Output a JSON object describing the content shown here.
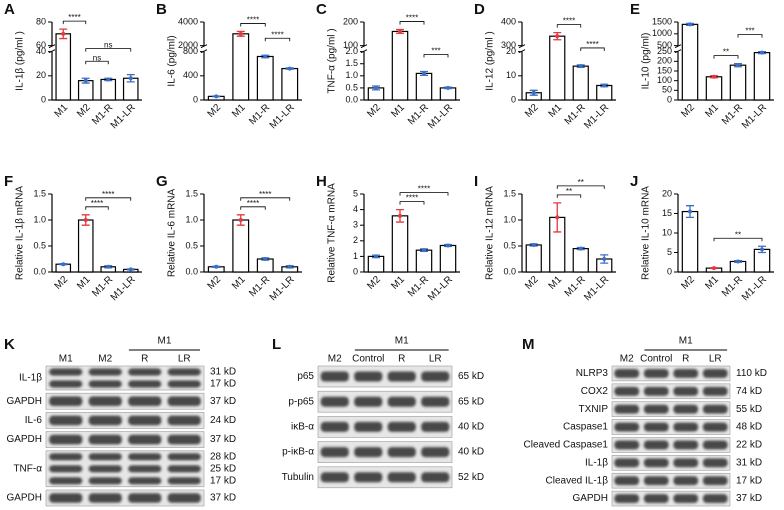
{
  "chart_data": [
    {
      "type": "bar",
      "panel": "A",
      "ylabel": "IL-1β  (pg/ml )",
      "categories": [
        "M1",
        "M2",
        "M1-R",
        "M1-LR"
      ],
      "values": [
        70,
        16,
        17,
        18
      ],
      "errors": [
        4,
        2,
        1,
        3
      ],
      "colors": [
        "#e23a3f",
        "#3b6fc4",
        "#3b6fc4",
        "#3b6fc4"
      ],
      "ylim": [
        0,
        80
      ],
      "ybreak": [
        40,
        60
      ],
      "yticks": [
        0,
        20,
        40,
        60,
        80
      ],
      "significance": [
        {
          "pair": [
            "M1",
            "M2"
          ],
          "label": "****"
        },
        {
          "pair": [
            "M2",
            "M1-R"
          ],
          "label": "ns"
        },
        {
          "pair": [
            "M2",
            "M1-LR"
          ],
          "label": "ns"
        }
      ]
    },
    {
      "type": "bar",
      "panel": "B",
      "ylabel": "IL-6 (pg/ml)",
      "categories": [
        "M2",
        "M1",
        "M1-R",
        "M1-LR"
      ],
      "values": [
        60,
        3000,
        720,
        520
      ],
      "errors": [
        5,
        200,
        20,
        10
      ],
      "colors": [
        "#3b6fc4",
        "#e23a3f",
        "#3b6fc4",
        "#3b6fc4"
      ],
      "ylim": [
        0,
        4000
      ],
      "ybreak": [
        800,
        2000
      ],
      "yticks": [
        0,
        400,
        800,
        2000,
        4000
      ],
      "significance": [
        {
          "pair": [
            "M1",
            "M1-R"
          ],
          "label": "****"
        },
        {
          "pair": [
            "M1-R",
            "M1-LR"
          ],
          "label": "****"
        }
      ]
    },
    {
      "type": "bar",
      "panel": "C",
      "ylabel": "TNF-α (pg/ml )",
      "categories": [
        "M2",
        "M1",
        "M1-R",
        "M1-LR"
      ],
      "values": [
        0.5,
        160,
        1.1,
        0.5
      ],
      "errors": [
        0.08,
        8,
        0.08,
        0.03
      ],
      "colors": [
        "#3b6fc4",
        "#e23a3f",
        "#3b6fc4",
        "#3b6fc4"
      ],
      "ylim": [
        0,
        200
      ],
      "ybreak": [
        2,
        100
      ],
      "yticks": [
        {
          "value": 0,
          "label": "0.0"
        },
        0.5,
        {
          "value": 1,
          "label": "1.0"
        },
        1.5,
        {
          "value": 2,
          "label": "2.0"
        },
        100,
        200
      ],
      "significance": [
        {
          "pair": [
            "M1",
            "M1-R"
          ],
          "label": "****"
        },
        {
          "pair": [
            "M1-R",
            "M1-LR"
          ],
          "label": "***"
        }
      ]
    },
    {
      "type": "bar",
      "panel": "D",
      "ylabel": "IL-12 (pg/ml )",
      "categories": [
        "M2",
        "M1",
        "M1-R",
        "M1-LR"
      ],
      "values": [
        3,
        340,
        14,
        6
      ],
      "errors": [
        1,
        15,
        0.5,
        0.5
      ],
      "colors": [
        "#3b6fc4",
        "#e23a3f",
        "#3b6fc4",
        "#3b6fc4"
      ],
      "ylim": [
        0,
        400
      ],
      "ybreak": [
        20,
        300
      ],
      "yticks": [
        0,
        10,
        20,
        300,
        400
      ],
      "significance": [
        {
          "pair": [
            "M1",
            "M1-R"
          ],
          "label": "****"
        },
        {
          "pair": [
            "M1-R",
            "M1-LR"
          ],
          "label": "****"
        }
      ]
    },
    {
      "type": "bar",
      "panel": "E",
      "ylabel": "IL-10 (pg/ml)",
      "categories": [
        "M2",
        "M1",
        "M1-R",
        "M1-LR"
      ],
      "values": [
        1400,
        120,
        180,
        245
      ],
      "errors": [
        40,
        5,
        8,
        5
      ],
      "colors": [
        "#3b6fc4",
        "#e23a3f",
        "#3b6fc4",
        "#3b6fc4"
      ],
      "ylim": [
        0,
        1500
      ],
      "ybreak": [
        250,
        500
      ],
      "yticks": [
        0,
        50,
        100,
        150,
        200,
        250,
        500,
        1000,
        1500
      ],
      "significance": [
        {
          "pair": [
            "M1",
            "M1-R"
          ],
          "label": "**"
        },
        {
          "pair": [
            "M1-R",
            "M1-LR"
          ],
          "label": "***"
        }
      ]
    },
    {
      "type": "bar",
      "panel": "F",
      "ylabel": "Relative IL-1β mRNA",
      "categories": [
        "M2",
        "M1",
        "M1-R",
        "M1-LR"
      ],
      "values": [
        0.15,
        1.0,
        0.1,
        0.05
      ],
      "errors": [
        0.01,
        0.1,
        0.02,
        0.01
      ],
      "colors": [
        "#3b6fc4",
        "#e23a3f",
        "#3b6fc4",
        "#3b6fc4"
      ],
      "ylim": [
        0,
        1.5
      ],
      "yticks": [
        {
          "value": 0,
          "label": "0.0"
        },
        0.5,
        {
          "value": 1,
          "label": "1.0"
        },
        1.5
      ],
      "significance": [
        {
          "pair": [
            "M1",
            "M1-R"
          ],
          "label": "****"
        },
        {
          "pair": [
            "M1",
            "M1-LR"
          ],
          "label": "****"
        }
      ]
    },
    {
      "type": "bar",
      "panel": "G",
      "ylabel": "Relative IL-6 mRNA",
      "categories": [
        "M2",
        "M1",
        "M1-R",
        "M1-LR"
      ],
      "values": [
        0.1,
        1.0,
        0.25,
        0.1
      ],
      "errors": [
        0.01,
        0.1,
        0.02,
        0.02
      ],
      "colors": [
        "#3b6fc4",
        "#e23a3f",
        "#3b6fc4",
        "#3b6fc4"
      ],
      "ylim": [
        0,
        1.5
      ],
      "yticks": [
        {
          "value": 0,
          "label": "0.0"
        },
        0.5,
        {
          "value": 1,
          "label": "1.0"
        },
        1.5
      ],
      "significance": [
        {
          "pair": [
            "M1",
            "M1-R"
          ],
          "label": "****"
        },
        {
          "pair": [
            "M1",
            "M1-LR"
          ],
          "label": "****"
        }
      ]
    },
    {
      "type": "bar",
      "panel": "H",
      "ylabel": "Relative TNF-α mRNA",
      "categories": [
        "M2",
        "M1",
        "M1-R",
        "M1-LR"
      ],
      "values": [
        1.0,
        3.6,
        1.4,
        1.7
      ],
      "errors": [
        0.08,
        0.4,
        0.08,
        0.06
      ],
      "colors": [
        "#3b6fc4",
        "#e23a3f",
        "#3b6fc4",
        "#3b6fc4"
      ],
      "ylim": [
        0,
        5
      ],
      "yticks": [
        0,
        1,
        2,
        3,
        4,
        5
      ],
      "significance": [
        {
          "pair": [
            "M1",
            "M1-R"
          ],
          "label": "****"
        },
        {
          "pair": [
            "M1",
            "M1-LR"
          ],
          "label": "****"
        }
      ]
    },
    {
      "type": "bar",
      "panel": "I",
      "ylabel": "Relative IL-12 mRNA",
      "categories": [
        "M2",
        "M1",
        "M1-R",
        "M1-LR"
      ],
      "values": [
        0.52,
        1.05,
        0.45,
        0.25
      ],
      "errors": [
        0.02,
        0.28,
        0.02,
        0.08
      ],
      "colors": [
        "#3b6fc4",
        "#e23a3f",
        "#3b6fc4",
        "#3b6fc4"
      ],
      "ylim": [
        0,
        1.5
      ],
      "yticks": [
        {
          "value": 0,
          "label": "0.0"
        },
        0.5,
        {
          "value": 1,
          "label": "1.0"
        },
        1.5
      ],
      "significance": [
        {
          "pair": [
            "M1",
            "M1-R"
          ],
          "label": "**"
        },
        {
          "pair": [
            "M1",
            "M1-LR"
          ],
          "label": "**"
        }
      ]
    },
    {
      "type": "bar",
      "panel": "J",
      "ylabel": "Relative IL-10 mRNA",
      "categories": [
        "M2",
        "M1",
        "M1-R",
        "M1-LR"
      ],
      "values": [
        15.5,
        1.0,
        2.7,
        5.8
      ],
      "errors": [
        1.5,
        0.1,
        0.2,
        0.8
      ],
      "colors": [
        "#3b6fc4",
        "#e23a3f",
        "#3b6fc4",
        "#3b6fc4"
      ],
      "ylim": [
        0,
        20
      ],
      "yticks": [
        0,
        5,
        10,
        15,
        20
      ],
      "significance": [
        {
          "pair": [
            "M1",
            "M1-LR"
          ],
          "label": "**"
        }
      ]
    }
  ],
  "blots": [
    {
      "panel": "K",
      "lanes": [
        "M1",
        "M2",
        "R",
        "LR"
      ],
      "group": {
        "label": "M1",
        "lanes": [
          "R",
          "LR"
        ]
      },
      "rows": [
        {
          "label": "IL-1β",
          "sizes": [
            "31 kD",
            "17 kD"
          ]
        },
        {
          "label": "GAPDH",
          "sizes": [
            "37 kD"
          ]
        },
        {
          "label": "IL-6",
          "sizes": [
            "24 kD"
          ]
        },
        {
          "label": "GAPDH",
          "sizes": [
            "37 kD"
          ]
        },
        {
          "label": "TNF-α",
          "sizes": [
            "28 kD",
            "25 kD",
            "17 kD"
          ]
        },
        {
          "label": "GAPDH",
          "sizes": [
            "37 kD"
          ]
        }
      ]
    },
    {
      "panel": "L",
      "lanes": [
        "M2",
        "Control",
        "R",
        "LR"
      ],
      "group": {
        "label": "M1",
        "lanes": [
          "Control",
          "R",
          "LR"
        ]
      },
      "rows": [
        {
          "label": "p65",
          "sizes": [
            "65 kD"
          ]
        },
        {
          "label": "p-p65",
          "sizes": [
            "65 kD"
          ]
        },
        {
          "label": "iκB-α",
          "sizes": [
            "40 kD"
          ]
        },
        {
          "label": "p-iκB-α",
          "sizes": [
            "40 kD"
          ]
        },
        {
          "label": "Tubulin",
          "sizes": [
            "52 kD"
          ]
        }
      ]
    },
    {
      "panel": "M",
      "lanes": [
        "M2",
        "Control",
        "R",
        "LR"
      ],
      "group": {
        "label": "M1",
        "lanes": [
          "Control",
          "R",
          "LR"
        ]
      },
      "rows": [
        {
          "label": "NLRP3",
          "sizes": [
            "110 kD"
          ]
        },
        {
          "label": "COX2",
          "sizes": [
            "74 kD"
          ]
        },
        {
          "label": "TXNIP",
          "sizes": [
            "55 kD"
          ]
        },
        {
          "label": "Caspase1",
          "sizes": [
            "48 kD"
          ]
        },
        {
          "label": "Cleaved Caspase1",
          "sizes": [
            "22 kD"
          ]
        },
        {
          "label": "IL-1β",
          "sizes": [
            "31 kD"
          ]
        },
        {
          "label": "Cleaved IL-1β",
          "sizes": [
            "17 kD"
          ]
        },
        {
          "label": "GAPDH",
          "sizes": [
            "37 kD"
          ]
        }
      ]
    }
  ]
}
